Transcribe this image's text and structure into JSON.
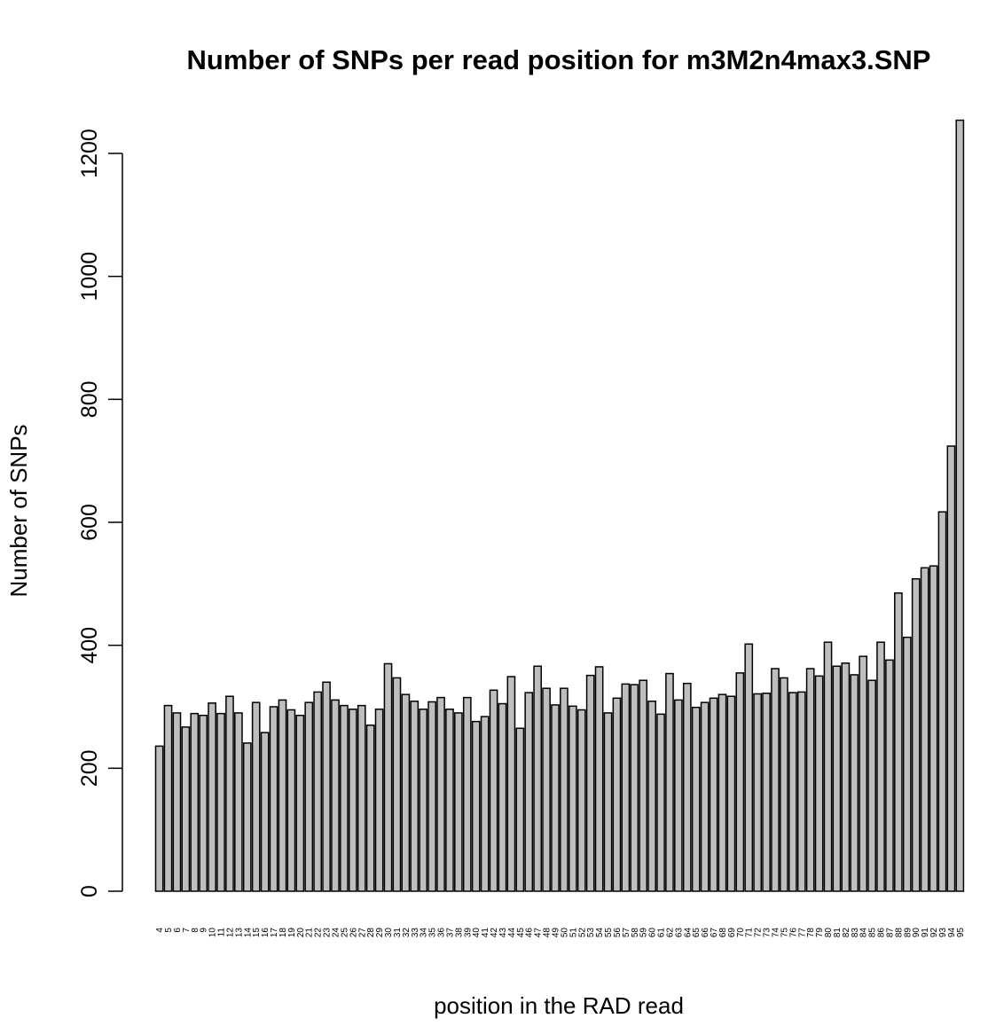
{
  "chart_data": {
    "type": "bar",
    "title": "Number of SNPs per read position for m3M2n4max3.SNP",
    "xlabel": "position in the RAD read",
    "ylabel": "Number of SNPs",
    "ylim": [
      0,
      1250
    ],
    "yticks": [
      0,
      200,
      400,
      600,
      800,
      1000,
      1200
    ],
    "grid": false,
    "legend": "none",
    "bar_color": "#bebebe",
    "categories": [
      "4",
      "5",
      "6",
      "7",
      "8",
      "9",
      "10",
      "11",
      "12",
      "13",
      "14",
      "15",
      "16",
      "17",
      "18",
      "19",
      "20",
      "21",
      "22",
      "23",
      "24",
      "25",
      "26",
      "27",
      "28",
      "29",
      "30",
      "31",
      "32",
      "33",
      "34",
      "35",
      "36",
      "37",
      "38",
      "39",
      "40",
      "41",
      "42",
      "43",
      "44",
      "45",
      "46",
      "47",
      "48",
      "49",
      "50",
      "51",
      "52",
      "53",
      "54",
      "55",
      "56",
      "57",
      "58",
      "59",
      "60",
      "61",
      "62",
      "63",
      "64",
      "65",
      "66",
      "67",
      "68",
      "69",
      "70",
      "71",
      "72",
      "73",
      "74",
      "75",
      "76",
      "77",
      "78",
      "79",
      "80",
      "81",
      "82",
      "83",
      "84",
      "85",
      "86",
      "87",
      "88",
      "89",
      "90",
      "91",
      "92",
      "93",
      "94",
      "95"
    ],
    "values": [
      236,
      302,
      290,
      267,
      289,
      286,
      306,
      289,
      317,
      290,
      241,
      307,
      258,
      300,
      311,
      295,
      286,
      307,
      324,
      340,
      311,
      302,
      296,
      302,
      270,
      296,
      370,
      347,
      320,
      309,
      296,
      308,
      315,
      296,
      290,
      315,
      276,
      284,
      327,
      305,
      349,
      265,
      323,
      366,
      330,
      303,
      330,
      301,
      295,
      351,
      365,
      290,
      314,
      337,
      336,
      343,
      309,
      288,
      354,
      311,
      338,
      299,
      307,
      314,
      320,
      317,
      355,
      402,
      321,
      322,
      362,
      347,
      323,
      324,
      362,
      350,
      405,
      366,
      371,
      352,
      382,
      343,
      405,
      376,
      485,
      413,
      508,
      526,
      529,
      617,
      724,
      1254
    ]
  }
}
